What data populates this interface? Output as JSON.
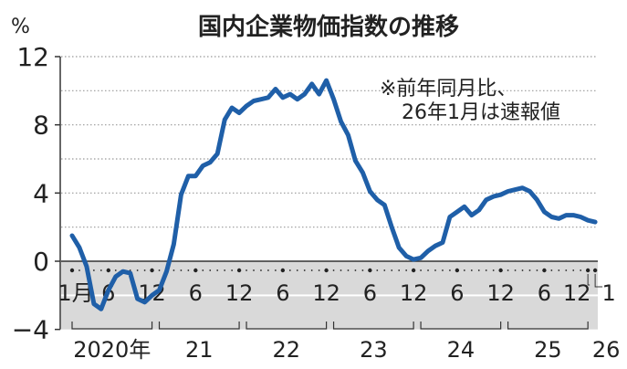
{
  "chart_data": {
    "type": "line",
    "title": "国内企業物価指数の推移",
    "unit_label": "%",
    "note_lines": [
      "※前年同月比、",
      "26年1月は速報値"
    ],
    "ylim": [
      -4,
      12
    ],
    "y_ticks": [
      12,
      8,
      4,
      0,
      -4
    ],
    "y_grid": [
      2,
      4,
      6,
      8,
      10,
      12
    ],
    "grid": true,
    "negative_region_shaded": true,
    "line_color": "#1f5fa8",
    "shade_color": "#d9d9d9",
    "x_start": "2020-01",
    "x_end": "2026-01",
    "x_tick_labels": [
      {
        "month_index": 0,
        "label": "1月"
      },
      {
        "month_index": 5,
        "label": "6"
      },
      {
        "month_index": 11,
        "label": "12"
      },
      {
        "month_index": 17,
        "label": "6"
      },
      {
        "month_index": 23,
        "label": "12"
      },
      {
        "month_index": 29,
        "label": "6"
      },
      {
        "month_index": 35,
        "label": "12"
      },
      {
        "month_index": 41,
        "label": "6"
      },
      {
        "month_index": 47,
        "label": "12"
      },
      {
        "month_index": 53,
        "label": "6"
      },
      {
        "month_index": 59,
        "label": "12"
      },
      {
        "month_index": 65,
        "label": "6"
      },
      {
        "month_index": 71,
        "label": "12"
      },
      {
        "month_index": 72,
        "label": "1"
      }
    ],
    "year_labels": [
      {
        "label": "2020年",
        "from": 0,
        "to": 11
      },
      {
        "label": "21",
        "from": 12,
        "to": 23
      },
      {
        "label": "22",
        "from": 24,
        "to": 35
      },
      {
        "label": "23",
        "from": 36,
        "to": 47
      },
      {
        "label": "24",
        "from": 48,
        "to": 59
      },
      {
        "label": "25",
        "from": 60,
        "to": 71
      },
      {
        "label": "26",
        "from": 72,
        "to": 72
      }
    ],
    "series": [
      {
        "values": [
          1.5,
          0.8,
          -0.3,
          -2.5,
          -2.8,
          -1.7,
          -0.9,
          -0.6,
          -0.7,
          -2.2,
          -2.4,
          -2.0,
          -1.7,
          -0.6,
          1.0,
          3.9,
          5.0,
          5.0,
          5.6,
          5.8,
          6.3,
          8.3,
          9.0,
          8.7,
          9.1,
          9.4,
          9.5,
          9.6,
          10.1,
          9.6,
          9.8,
          9.5,
          9.8,
          10.4,
          9.8,
          10.6,
          9.5,
          8.2,
          7.4,
          5.9,
          5.2,
          4.1,
          3.6,
          3.3,
          2.0,
          0.8,
          0.3,
          0.1,
          0.2,
          0.6,
          0.9,
          1.1,
          2.6,
          2.9,
          3.2,
          2.7,
          3.0,
          3.6,
          3.8,
          3.9,
          4.1,
          4.2,
          4.3,
          4.1,
          3.6,
          2.9,
          2.6,
          2.5,
          2.7,
          2.7,
          2.6,
          2.4,
          2.3
        ]
      }
    ]
  }
}
